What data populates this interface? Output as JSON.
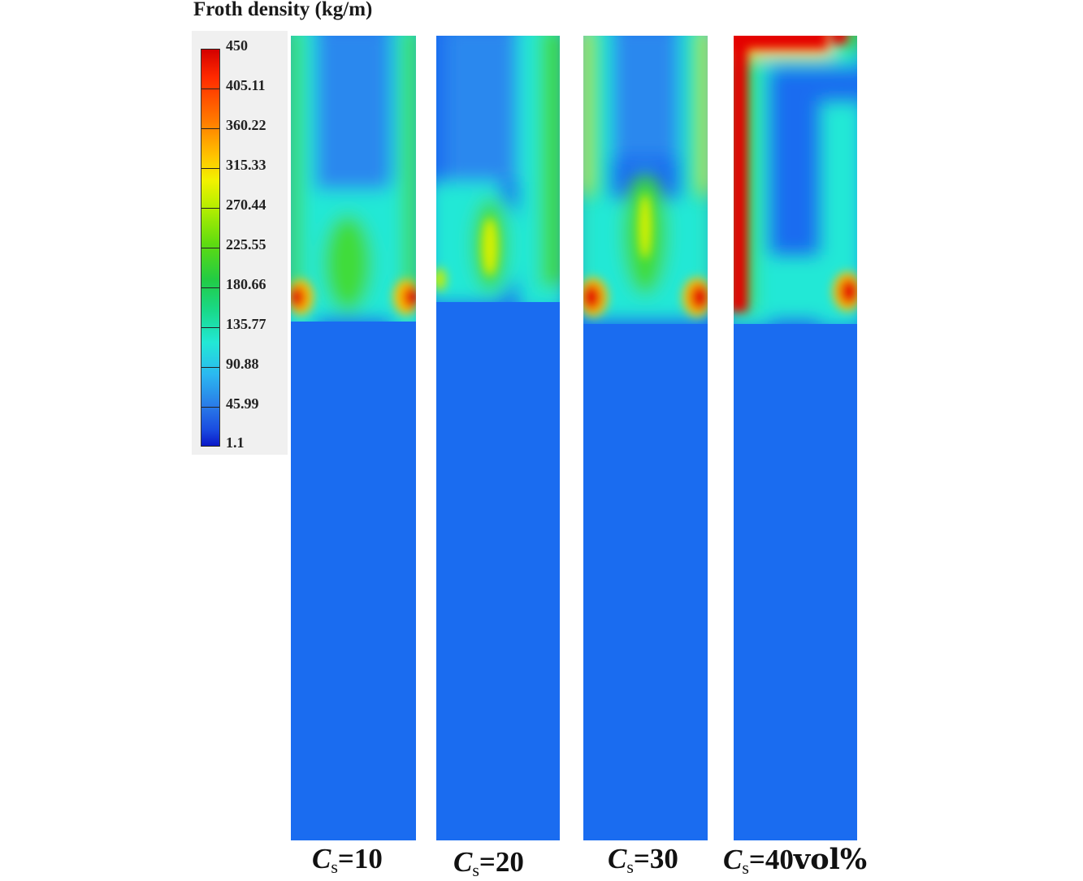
{
  "figure": {
    "legend_title": "Froth density (kg/m)"
  },
  "chart_data": {
    "type": "heatmap",
    "title": "Froth density (kg/m)",
    "colorbar": {
      "min": 1.1,
      "max": 450,
      "ticks": [
        "450",
        "405.11",
        "360.22",
        "315.33",
        "270.44",
        "225.55",
        "180.66",
        "135.77",
        "90.88",
        "45.99",
        "1.1"
      ]
    },
    "panels": [
      {
        "symbol": "C",
        "subscript": "s",
        "value_text": "=10",
        "unit": ""
      },
      {
        "symbol": "C",
        "subscript": "s",
        "value_text": "=20",
        "unit": ""
      },
      {
        "symbol": "C",
        "subscript": "s",
        "value_text": "=30",
        "unit": ""
      },
      {
        "symbol": "C",
        "subscript": "s",
        "value_text": "=40",
        "unit": "vol%"
      }
    ],
    "colors": {
      "background_low": "#1a6cf0",
      "cyan": "#22e8d6",
      "green": "#3fdc3a",
      "yellow": "#e8f000",
      "red": "#e40000"
    }
  }
}
